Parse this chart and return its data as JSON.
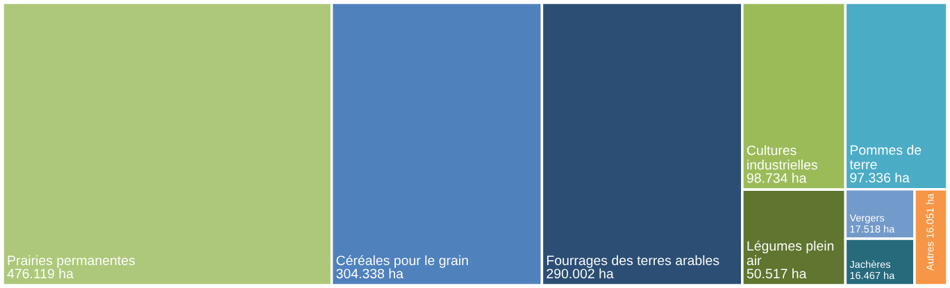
{
  "chart_data": {
    "type": "other",
    "categories": [
      "Prairies permanentes",
      "Céréales pour le grain",
      "Fourrages des terres arables",
      "Cultures industrielles",
      "Pommes de terre",
      "Légumes plein air",
      "Vergers",
      "Jachères",
      "Autres"
    ],
    "values": [
      476119,
      304338,
      290002,
      98734,
      97336,
      50517,
      17518,
      16467,
      16051
    ],
    "value_labels": [
      "476.119 ha",
      "304.338 ha",
      "290.002 ha",
      "98.734 ha",
      "97.336 ha",
      "50.517 ha",
      "17.518 ha",
      "16.467 ha",
      "16.051 ha"
    ],
    "colors": [
      "#adc87a",
      "#4f81bd",
      "#2c4e74",
      "#9bbb59",
      "#4bacc6",
      "#5f7530",
      "#729aca",
      "#276a7c",
      "#f79646"
    ]
  }
}
